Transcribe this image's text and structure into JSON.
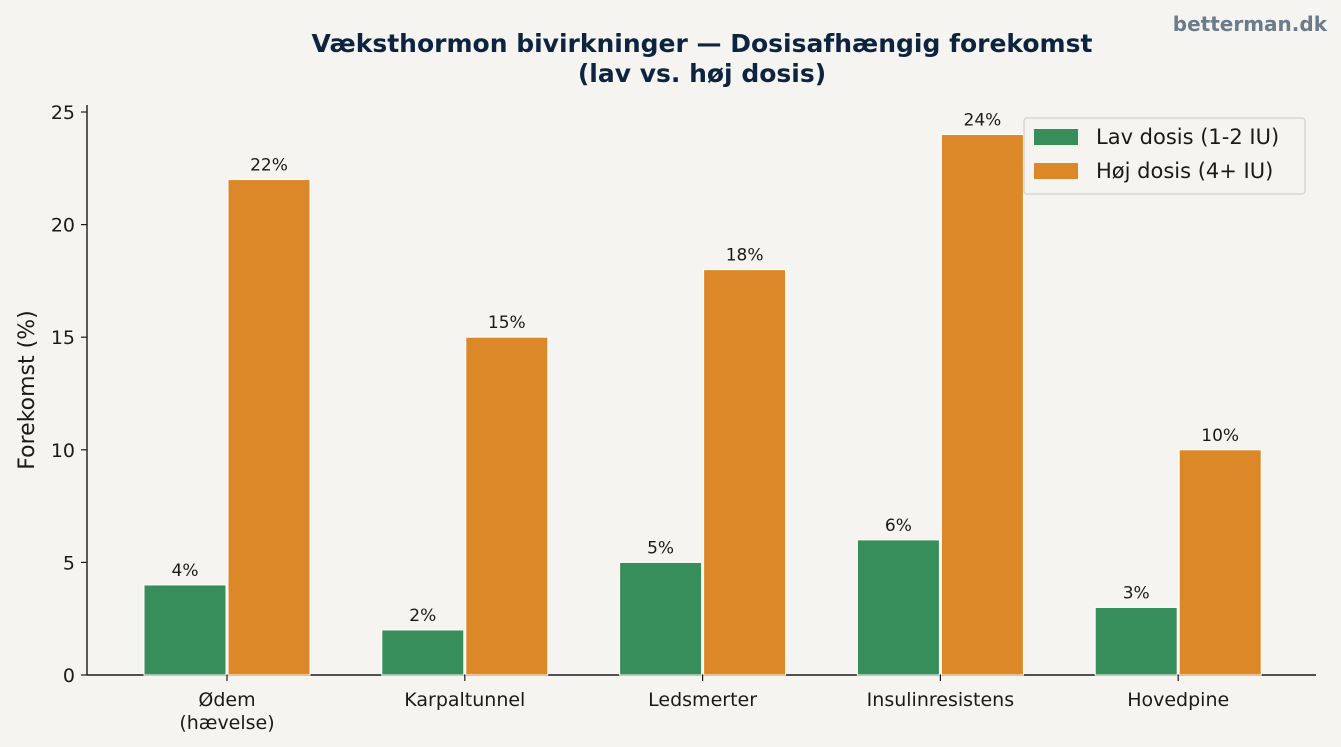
{
  "watermark": "betterman.dk",
  "chart_data": {
    "type": "bar",
    "title": [
      "Væksthormon bivirkninger — Dosisafhængig forekomst",
      "(lav vs. høj dosis)"
    ],
    "xlabel": "",
    "ylabel": "Forekomst (%)",
    "ylim": [
      0,
      25
    ],
    "yticks": [
      0,
      5,
      10,
      15,
      20,
      25
    ],
    "categories": [
      [
        "Ødem",
        "(hævelse)"
      ],
      [
        "Karpaltunnel"
      ],
      [
        "Ledsmerter"
      ],
      [
        "Insulinresistens"
      ],
      [
        "Hovedpine"
      ]
    ],
    "series": [
      {
        "name": "Lav dosis (1-2 IU)",
        "color": "#388e5a",
        "values": [
          4,
          2,
          5,
          6,
          3
        ],
        "labels": [
          "4%",
          "2%",
          "5%",
          "6%",
          "3%"
        ]
      },
      {
        "name": "Høj dosis (4+ IU)",
        "color": "#dc8829",
        "values": [
          22,
          15,
          18,
          24,
          10
        ],
        "labels": [
          "22%",
          "15%",
          "18%",
          "24%",
          "10%"
        ]
      }
    ],
    "legend_position": "top-right",
    "grid": false
  }
}
